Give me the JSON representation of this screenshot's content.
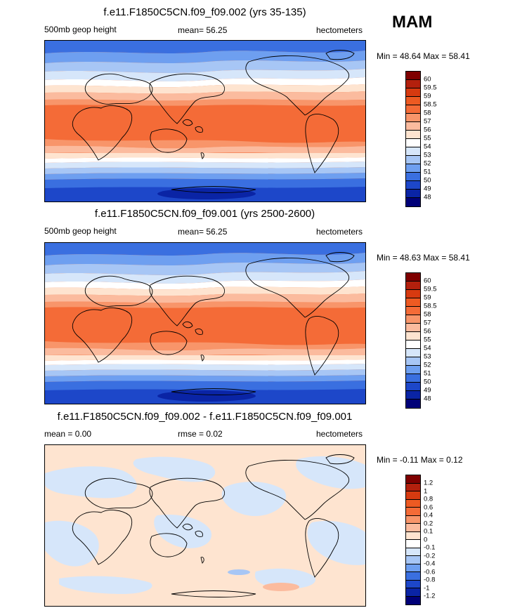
{
  "season": "MAM",
  "panels": [
    {
      "title": "f.e11.F1850C5CN.f09_f09.002 (yrs 35-135)",
      "left_label": "500mb geop height",
      "center_label": "mean=  56.25",
      "right_label": "hectometers",
      "minmax": "Min =  48.64 Max =  58.41",
      "colorbar": {
        "labels": [
          "60",
          "59.5",
          "59",
          "58.5",
          "58",
          "57",
          "56",
          "55",
          "54",
          "53",
          "52",
          "51",
          "50",
          "49",
          "48"
        ],
        "colors": [
          "#7f0000",
          "#b3200d",
          "#d73a10",
          "#ed5a22",
          "#f46b37",
          "#f8956a",
          "#fbbb9e",
          "#fee4d0",
          "#ffffff",
          "#d6e6fa",
          "#a7c6f5",
          "#6e9ff0",
          "#3a6fe0",
          "#1d47c9",
          "#0a24a5",
          "#000078"
        ]
      }
    },
    {
      "title": "f.e11.F1850C5CN.f09_f09.001 (yrs 2500-2600)",
      "left_label": "500mb geop height",
      "center_label": "mean=  56.25",
      "right_label": "hectometers",
      "minmax": "Min =  48.63 Max =  58.41",
      "colorbar": {
        "labels": [
          "60",
          "59.5",
          "59",
          "58.5",
          "58",
          "57",
          "56",
          "55",
          "54",
          "53",
          "52",
          "51",
          "50",
          "49",
          "48"
        ],
        "colors": [
          "#7f0000",
          "#b3200d",
          "#d73a10",
          "#ed5a22",
          "#f46b37",
          "#f8956a",
          "#fbbb9e",
          "#fee4d0",
          "#ffffff",
          "#d6e6fa",
          "#a7c6f5",
          "#6e9ff0",
          "#3a6fe0",
          "#1d47c9",
          "#0a24a5",
          "#000078"
        ]
      }
    },
    {
      "title": "f.e11.F1850C5CN.f09_f09.002 - f.e11.F1850C5CN.f09_f09.001",
      "left_label": "mean =   0.00",
      "center_label": "rmse =   0.02",
      "right_label": "hectometers",
      "minmax": "Min =  -0.11 Max =   0.12",
      "colorbar": {
        "labels": [
          "1.2",
          "1",
          "0.8",
          "0.6",
          "0.4",
          "0.2",
          "0.1",
          "0",
          "-0.1",
          "-0.2",
          "-0.4",
          "-0.6",
          "-0.8",
          "-1",
          "-1.2"
        ],
        "colors": [
          "#7f0000",
          "#b3200d",
          "#d73a10",
          "#ed5a22",
          "#f46b37",
          "#f8956a",
          "#fbbb9e",
          "#fee4d0",
          "#ffffff",
          "#d6e6fa",
          "#a7c6f5",
          "#6e9ff0",
          "#3a6fe0",
          "#1d47c9",
          "#0a24a5",
          "#000078"
        ]
      }
    }
  ]
}
